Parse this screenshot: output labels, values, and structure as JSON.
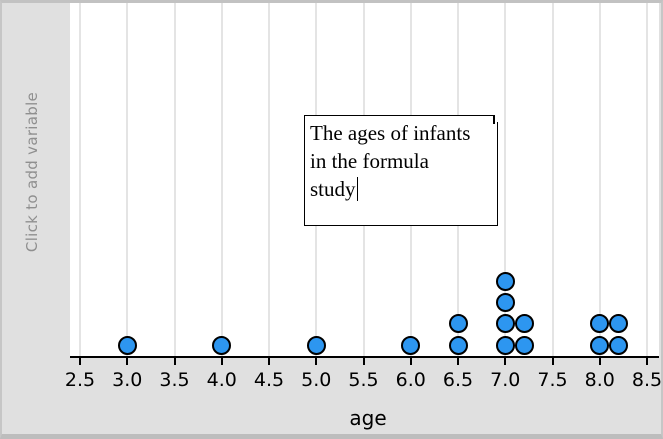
{
  "sidebar": {
    "add_variable_label": "Click to add variable"
  },
  "annotation_box": {
    "lines": [
      "The ages of infants",
      "in the formula",
      "study"
    ],
    "cursor_visible": true
  },
  "chart_data": {
    "type": "scatter",
    "subtype": "dot_plot",
    "xlabel": "age",
    "x_ticks": [
      2.5,
      3.0,
      3.5,
      4.0,
      4.5,
      5.0,
      5.5,
      6.0,
      6.5,
      7.0,
      7.5,
      8.0,
      8.5
    ],
    "xlim": [
      2.4,
      8.65
    ],
    "values": [
      3.0,
      4.0,
      5.0,
      6.0,
      6.5,
      6.5,
      7.0,
      7.0,
      7.0,
      7.0,
      7.2,
      7.2,
      8.0,
      8.0,
      8.2,
      8.2
    ],
    "grid": "vertical",
    "legend": "none",
    "annotation": "The ages of infants in the formula study"
  },
  "colors": {
    "dot_fill": "#2d96f0",
    "dot_stroke": "#000000",
    "plot_background": "#ffffff",
    "panel_background": "#e0e0e0",
    "gridline": "#e4e4e4",
    "sidebar_text": "#8f8f8f",
    "axis": "#000000"
  }
}
